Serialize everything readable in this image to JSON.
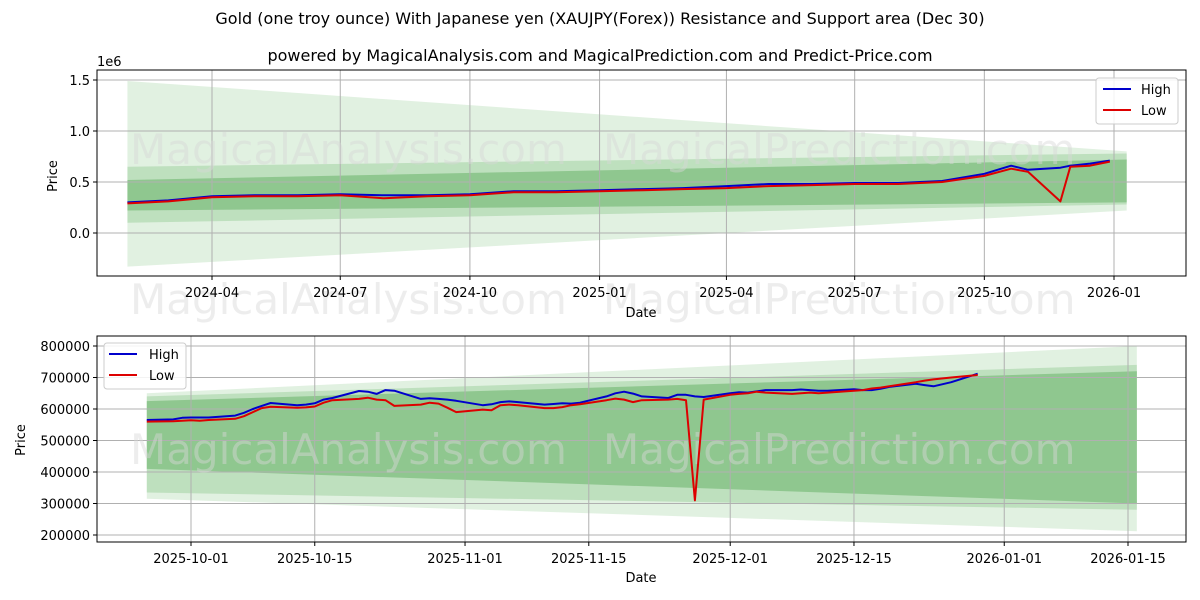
{
  "header": {
    "title": "Gold (one troy ounce) With Japanese yen (XAUJPY(Forex)) Resistance and Support area (Dec 30)",
    "subtitle": "powered by MagicalAnalysis.com and MagicalPrediction.com and Predict-Price.com"
  },
  "watermarks": {
    "left": "MagicalAnalysis.com",
    "right": "MagicalPrediction.com"
  },
  "colors": {
    "high": "#0000cc",
    "low": "#dd0000",
    "band_light": "#c8e6c9",
    "band_mid": "#7fbf7f",
    "grid": "#b0b0b0"
  },
  "chart_data": [
    {
      "type": "line",
      "title": "",
      "xlabel": "Date",
      "ylabel": "Price",
      "y_offset_label": "1e6",
      "ylim": [
        -0.42,
        1.6
      ],
      "y_ticks": [
        0.0,
        0.5,
        1.0,
        1.5
      ],
      "y_tick_labels": [
        "0.0",
        "0.5",
        "1.0",
        "1.5"
      ],
      "x_tick_labels": [
        "2024-04",
        "2024-07",
        "2024-10",
        "2025-01",
        "2025-04",
        "2025-07",
        "2025-10",
        "2026-01"
      ],
      "grid": true,
      "legend": {
        "position": "upper right",
        "entries": [
          "High",
          "Low"
        ]
      },
      "units": "1e6 JPY",
      "x": [
        "2024-02-01",
        "2024-03-01",
        "2024-04-01",
        "2024-05-01",
        "2024-06-01",
        "2024-07-01",
        "2024-08-01",
        "2024-09-01",
        "2024-10-01",
        "2024-11-01",
        "2024-12-01",
        "2025-01-01",
        "2025-02-01",
        "2025-03-01",
        "2025-04-01",
        "2025-05-01",
        "2025-06-01",
        "2025-07-01",
        "2025-08-01",
        "2025-09-01",
        "2025-10-01",
        "2025-10-20",
        "2025-11-01",
        "2025-11-24",
        "2025-12-01",
        "2025-12-15",
        "2025-12-29"
      ],
      "series": [
        {
          "name": "High",
          "values": [
            0.3,
            0.32,
            0.36,
            0.37,
            0.37,
            0.38,
            0.37,
            0.37,
            0.38,
            0.41,
            0.41,
            0.42,
            0.43,
            0.44,
            0.46,
            0.48,
            0.48,
            0.49,
            0.49,
            0.51,
            0.58,
            0.66,
            0.62,
            0.64,
            0.66,
            0.68,
            0.71
          ]
        },
        {
          "name": "Low",
          "values": [
            0.29,
            0.31,
            0.35,
            0.36,
            0.36,
            0.37,
            0.34,
            0.36,
            0.37,
            0.4,
            0.4,
            0.41,
            0.42,
            0.43,
            0.44,
            0.46,
            0.47,
            0.48,
            0.48,
            0.5,
            0.56,
            0.63,
            0.6,
            0.31,
            0.65,
            0.66,
            0.7
          ]
        }
      ],
      "bands": [
        {
          "name": "outer",
          "start": {
            "x": "2024-02-01",
            "upper": 1.49,
            "lower": -0.33
          },
          "end": {
            "x": "2026-01-10",
            "upper": 0.8,
            "lower": 0.22
          }
        },
        {
          "name": "middle",
          "start": {
            "x": "2024-02-01",
            "upper": 0.65,
            "lower": 0.1
          },
          "end": {
            "x": "2026-01-10",
            "upper": 0.78,
            "lower": 0.28
          }
        },
        {
          "name": "inner",
          "start": {
            "x": "2024-02-01",
            "upper": 0.52,
            "lower": 0.22
          },
          "end": {
            "x": "2026-01-10",
            "upper": 0.72,
            "lower": 0.3
          }
        }
      ]
    },
    {
      "type": "line",
      "title": "",
      "xlabel": "Date",
      "ylabel": "Price",
      "ylim": [
        170000,
        830000
      ],
      "y_ticks": [
        200000,
        300000,
        400000,
        500000,
        600000,
        700000,
        800000
      ],
      "y_tick_labels": [
        "200000",
        "300000",
        "400000",
        "500000",
        "600000",
        "700000",
        "800000"
      ],
      "x_tick_labels": [
        "2025-10-01",
        "2025-10-15",
        "2025-11-01",
        "2025-11-15",
        "2025-12-01",
        "2025-12-15",
        "2026-01-01",
        "2026-01-15"
      ],
      "grid": true,
      "legend": {
        "position": "upper left",
        "entries": [
          "High",
          "Low"
        ]
      },
      "x": [
        "2025-09-26",
        "2025-09-29",
        "2025-09-30",
        "2025-10-01",
        "2025-10-02",
        "2025-10-03",
        "2025-10-06",
        "2025-10-07",
        "2025-10-08",
        "2025-10-09",
        "2025-10-10",
        "2025-10-13",
        "2025-10-14",
        "2025-10-15",
        "2025-10-16",
        "2025-10-17",
        "2025-10-20",
        "2025-10-21",
        "2025-10-22",
        "2025-10-23",
        "2025-10-24",
        "2025-10-27",
        "2025-10-28",
        "2025-10-29",
        "2025-10-30",
        "2025-10-31",
        "2025-11-03",
        "2025-11-04",
        "2025-11-05",
        "2025-11-06",
        "2025-11-07",
        "2025-11-10",
        "2025-11-11",
        "2025-11-12",
        "2025-11-13",
        "2025-11-14",
        "2025-11-17",
        "2025-11-18",
        "2025-11-19",
        "2025-11-20",
        "2025-11-21",
        "2025-11-24",
        "2025-11-25",
        "2025-11-26",
        "2025-11-27",
        "2025-11-28",
        "2025-12-01",
        "2025-12-02",
        "2025-12-03",
        "2025-12-04",
        "2025-12-05",
        "2025-12-08",
        "2025-12-09",
        "2025-12-10",
        "2025-12-11",
        "2025-12-12",
        "2025-12-15",
        "2025-12-16",
        "2025-12-17",
        "2025-12-18",
        "2025-12-19",
        "2025-12-22",
        "2025-12-23",
        "2025-12-24",
        "2025-12-26",
        "2025-12-29"
      ],
      "series": [
        {
          "name": "High",
          "values": [
            565000,
            567000,
            572000,
            573000,
            573000,
            573000,
            579000,
            588000,
            600000,
            610000,
            619000,
            612000,
            614000,
            618000,
            630000,
            635000,
            657000,
            655000,
            648000,
            660000,
            658000,
            632000,
            634000,
            632000,
            630000,
            626000,
            612000,
            615000,
            622000,
            624000,
            622000,
            614000,
            616000,
            618000,
            617000,
            620000,
            640000,
            650000,
            655000,
            649000,
            640000,
            635000,
            645000,
            645000,
            640000,
            638000,
            650000,
            653000,
            652000,
            656000,
            660000,
            660000,
            662000,
            660000,
            658000,
            658000,
            663000,
            660000,
            660000,
            664000,
            670000,
            680000,
            676000,
            672000,
            685000,
            712000
          ]
        },
        {
          "name": "Low",
          "values": [
            560000,
            561000,
            563000,
            564000,
            563000,
            565000,
            569000,
            577000,
            590000,
            603000,
            607000,
            604000,
            605000,
            608000,
            620000,
            628000,
            632000,
            636000,
            630000,
            628000,
            610000,
            614000,
            620000,
            617000,
            604000,
            590000,
            598000,
            596000,
            612000,
            614000,
            612000,
            603000,
            603000,
            606000,
            612000,
            615000,
            628000,
            633000,
            630000,
            622000,
            628000,
            630000,
            632000,
            628000,
            310000,
            630000,
            645000,
            648000,
            650000,
            655000,
            652000,
            648000,
            650000,
            652000,
            650000,
            652000,
            658000,
            660000,
            665000,
            668000,
            672000,
            685000,
            690000,
            694000,
            700000,
            708000
          ]
        }
      ],
      "bands": [
        {
          "name": "outer",
          "start": {
            "x": "2025-09-26",
            "upper": 650000,
            "lower": 315000
          },
          "end": {
            "x": "2026-01-16",
            "upper": 800000,
            "lower": 212000
          }
        },
        {
          "name": "middle",
          "start": {
            "x": "2025-09-26",
            "upper": 640000,
            "lower": 335000
          },
          "end": {
            "x": "2026-01-16",
            "upper": 740000,
            "lower": 280000
          }
        },
        {
          "name": "inner",
          "start": {
            "x": "2025-09-26",
            "upper": 625000,
            "lower": 410000
          },
          "end": {
            "x": "2026-01-16",
            "upper": 720000,
            "lower": 300000
          }
        }
      ]
    }
  ]
}
